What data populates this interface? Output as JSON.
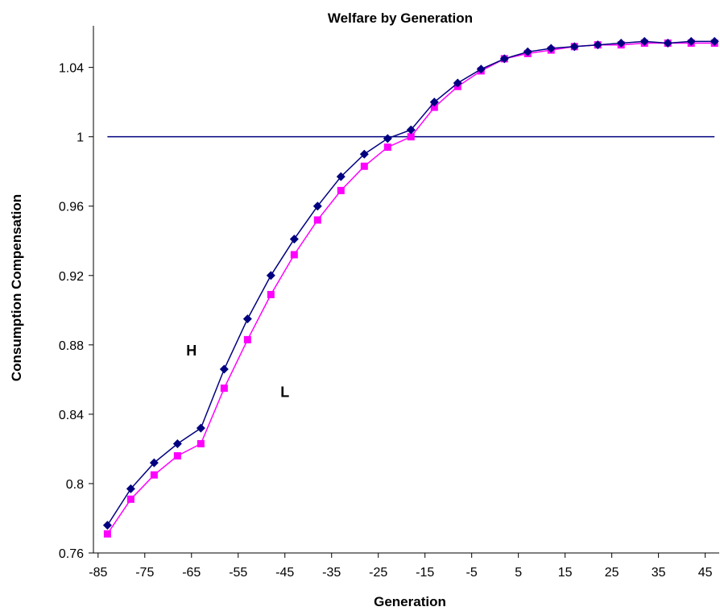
{
  "chart_data": {
    "type": "line",
    "title": "Welfare by Generation",
    "xlabel": "Generation",
    "ylabel": "Consumption Compensation",
    "xlim": [
      -86,
      48
    ],
    "ylim": [
      0.76,
      1.064
    ],
    "x_ticks": [
      -85,
      -75,
      -65,
      -55,
      -45,
      -35,
      -25,
      -15,
      -5,
      5,
      15,
      25,
      35,
      45
    ],
    "y_ticks": [
      0.76,
      0.8,
      0.84,
      0.88,
      0.92,
      0.96,
      1,
      1.04
    ],
    "x_tick_labels": [
      "-85",
      "-75",
      "-65",
      "-55",
      "-45",
      "-35",
      "-25",
      "-15",
      "-5",
      "5",
      "15",
      "25",
      "35",
      "45"
    ],
    "y_tick_labels": [
      "0.76",
      "0.8",
      "0.84",
      "0.88",
      "0.92",
      "0.96",
      "1",
      "1.04"
    ],
    "grid": false,
    "x": [
      -83,
      -78,
      -73,
      -68,
      -63,
      -58,
      -53,
      -48,
      -43,
      -38,
      -33,
      -28,
      -23,
      -18,
      -13,
      -8,
      -3,
      2,
      7,
      12,
      17,
      22,
      27,
      32,
      37,
      42,
      47
    ],
    "series": [
      {
        "values": [
          0.776,
          0.797,
          0.812,
          0.823,
          0.832,
          0.866,
          0.895,
          0.92,
          0.941,
          0.96,
          0.977,
          0.99,
          0.999,
          1.004,
          1.02,
          1.031,
          1.039,
          1.045,
          1.049,
          1.051,
          1.052,
          1.053,
          1.054,
          1.055,
          1.054,
          1.055,
          1.055
        ],
        "color": "#000080",
        "marker": "diamond"
      },
      {
        "values": [
          0.771,
          0.791,
          0.805,
          0.816,
          0.823,
          0.855,
          0.883,
          0.909,
          0.932,
          0.952,
          0.969,
          0.983,
          0.994,
          1.0,
          1.017,
          1.029,
          1.038,
          1.045,
          1.048,
          1.05,
          1.052,
          1.053,
          1.053,
          1.054,
          1.054,
          1.054,
          1.054
        ],
        "color": "#FF00FF",
        "marker": "square"
      }
    ],
    "reference_line": {
      "y": 1,
      "x_range": [
        -83,
        47
      ],
      "color": "#000080"
    },
    "annotations": [
      {
        "text": "H",
        "x": -65,
        "y": 0.874
      },
      {
        "text": "L",
        "x": -45,
        "y": 0.85
      }
    ]
  }
}
